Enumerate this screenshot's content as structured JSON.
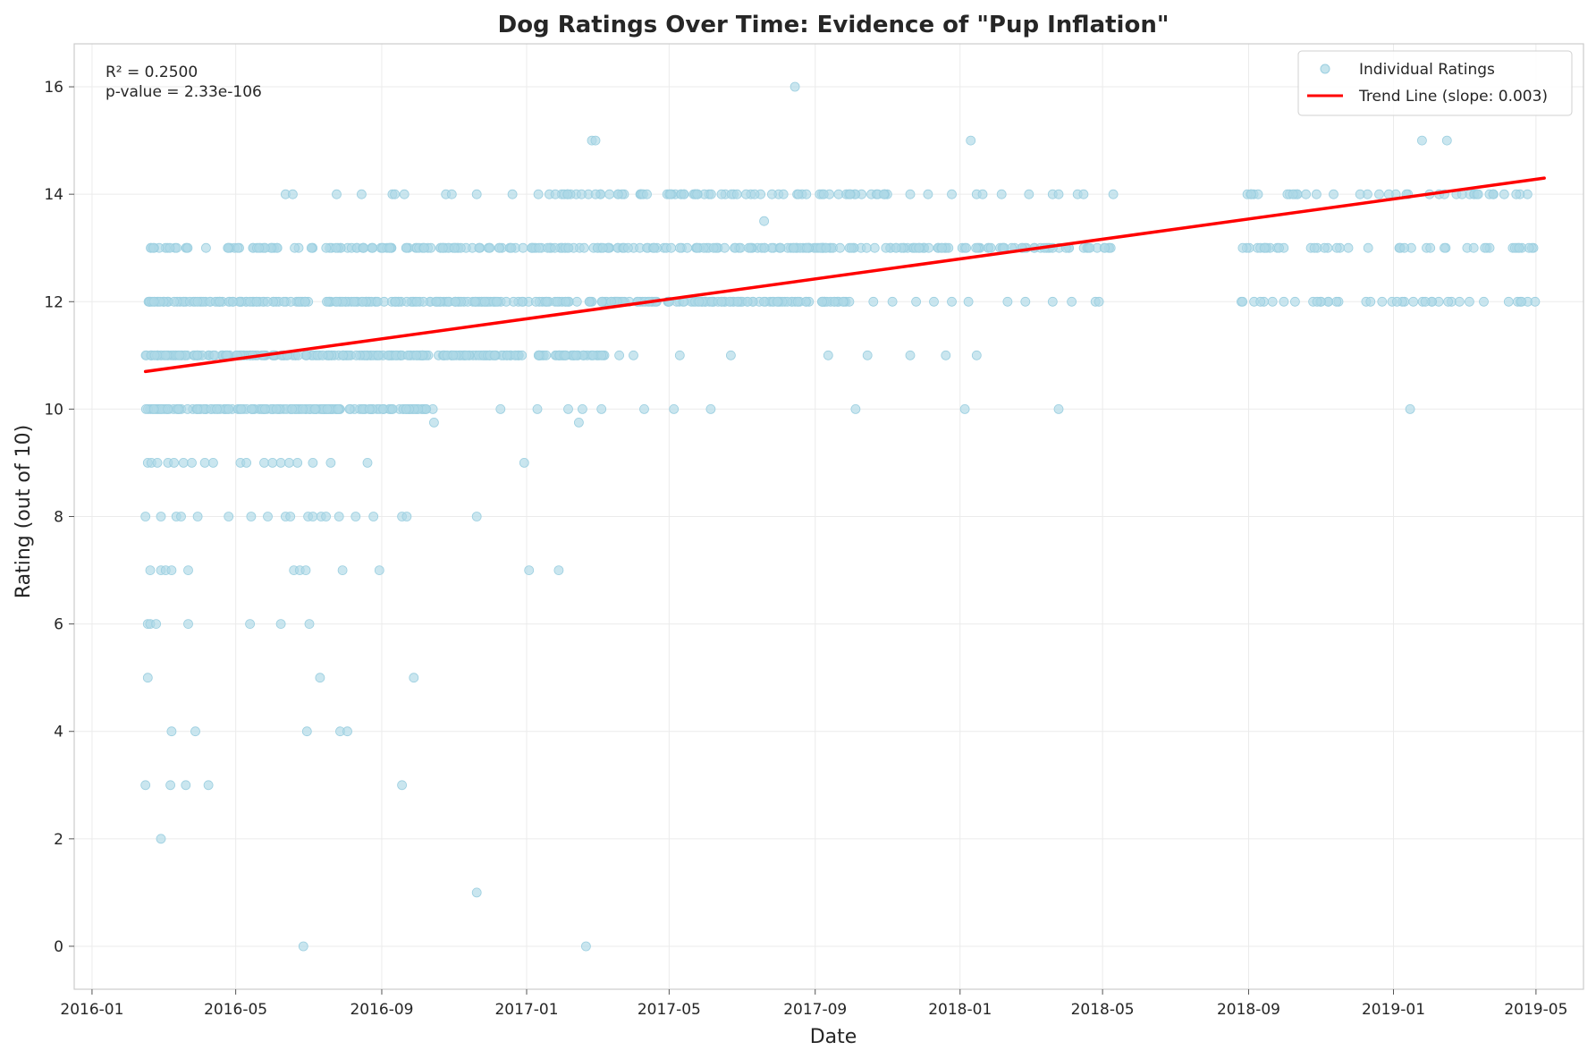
{
  "chart_data": {
    "type": "scatter",
    "title": "Dog Ratings Over Time: Evidence of \"Pup Inflation\"",
    "xlabel": "Date",
    "ylabel": "Rating (out of 10)",
    "xlim": [
      "2015-12-17",
      "2019-06-10"
    ],
    "ylim": [
      -0.8,
      16.8
    ],
    "x_ticks": [
      "2016-01",
      "2016-05",
      "2016-09",
      "2017-01",
      "2017-05",
      "2017-09",
      "2018-01",
      "2018-05",
      "2018-09",
      "2019-01",
      "2019-05"
    ],
    "y_ticks": [
      0,
      2,
      4,
      6,
      8,
      10,
      12,
      14,
      16
    ],
    "grid": true,
    "legend_position": "top-right",
    "stats": {
      "r2_text": "R² = 0.2500",
      "p_text": "p-value = 2.33e-106"
    },
    "series": [
      {
        "name": "Individual Ratings",
        "kind": "scatter",
        "color": "#add8e6",
        "bands": [
          {
            "rating": 13,
            "from": "2016-02-15",
            "to": "2018-05-10",
            "count": 300
          },
          {
            "rating": 12,
            "from": "2016-02-15",
            "to": "2017-10-01",
            "count": 300
          },
          {
            "rating": 11,
            "from": "2016-02-15",
            "to": "2017-03-15",
            "count": 260
          },
          {
            "rating": 10,
            "from": "2016-02-15",
            "to": "2016-10-15",
            "count": 180
          },
          {
            "rating": 14,
            "from": "2017-01-10",
            "to": "2017-11-10",
            "count": 80
          },
          {
            "rating": 13,
            "from": "2018-08-25",
            "to": "2019-05-08",
            "count": 45
          },
          {
            "rating": 12,
            "from": "2018-08-25",
            "to": "2019-05-08",
            "count": 40
          },
          {
            "rating": 14,
            "from": "2018-08-25",
            "to": "2019-05-08",
            "count": 40
          }
        ],
        "points": [
          [
            "2016-02-17",
            9
          ],
          [
            "2016-02-20",
            9
          ],
          [
            "2016-02-25",
            9
          ],
          [
            "2016-03-05",
            9
          ],
          [
            "2016-03-10",
            9
          ],
          [
            "2016-03-18",
            9
          ],
          [
            "2016-03-25",
            9
          ],
          [
            "2016-04-05",
            9
          ],
          [
            "2016-04-12",
            9
          ],
          [
            "2016-05-05",
            9
          ],
          [
            "2016-05-10",
            9
          ],
          [
            "2016-05-25",
            9
          ],
          [
            "2016-06-01",
            9
          ],
          [
            "2016-06-08",
            9
          ],
          [
            "2016-06-15",
            9
          ],
          [
            "2016-06-22",
            9
          ],
          [
            "2016-07-05",
            9
          ],
          [
            "2016-07-20",
            9
          ],
          [
            "2016-08-20",
            9
          ],
          [
            "2016-12-30",
            9
          ],
          [
            "2016-02-15",
            8
          ],
          [
            "2016-02-28",
            8
          ],
          [
            "2016-03-12",
            8
          ],
          [
            "2016-03-16",
            8
          ],
          [
            "2016-03-30",
            8
          ],
          [
            "2016-04-25",
            8
          ],
          [
            "2016-05-14",
            8
          ],
          [
            "2016-05-28",
            8
          ],
          [
            "2016-06-12",
            8
          ],
          [
            "2016-06-16",
            8
          ],
          [
            "2016-07-01",
            8
          ],
          [
            "2016-07-05",
            8
          ],
          [
            "2016-07-12",
            8
          ],
          [
            "2016-07-16",
            8
          ],
          [
            "2016-07-27",
            8
          ],
          [
            "2016-08-10",
            8
          ],
          [
            "2016-08-25",
            8
          ],
          [
            "2016-09-18",
            8
          ],
          [
            "2016-09-22",
            8
          ],
          [
            "2016-11-20",
            8
          ],
          [
            "2016-02-19",
            7
          ],
          [
            "2016-02-28",
            7
          ],
          [
            "2016-03-03",
            7
          ],
          [
            "2016-03-08",
            7
          ],
          [
            "2016-03-22",
            7
          ],
          [
            "2016-06-19",
            7
          ],
          [
            "2016-06-24",
            7
          ],
          [
            "2016-06-29",
            7
          ],
          [
            "2016-07-30",
            7
          ],
          [
            "2016-08-30",
            7
          ],
          [
            "2017-01-03",
            7
          ],
          [
            "2017-01-28",
            7
          ],
          [
            "2016-02-17",
            6
          ],
          [
            "2016-02-19",
            6
          ],
          [
            "2016-02-24",
            6
          ],
          [
            "2016-03-22",
            6
          ],
          [
            "2016-05-13",
            6
          ],
          [
            "2016-06-08",
            6
          ],
          [
            "2016-07-02",
            6
          ],
          [
            "2016-02-17",
            5
          ],
          [
            "2016-07-11",
            5
          ],
          [
            "2016-09-28",
            5
          ],
          [
            "2016-03-08",
            4
          ],
          [
            "2016-03-28",
            4
          ],
          [
            "2016-06-30",
            4
          ],
          [
            "2016-07-28",
            4
          ],
          [
            "2016-08-03",
            4
          ],
          [
            "2016-02-15",
            3
          ],
          [
            "2016-03-07",
            3
          ],
          [
            "2016-03-20",
            3
          ],
          [
            "2016-04-08",
            3
          ],
          [
            "2016-09-18",
            3
          ],
          [
            "2016-02-28",
            2
          ],
          [
            "2016-11-20",
            1
          ],
          [
            "2016-06-27",
            0
          ],
          [
            "2017-02-20",
            0
          ],
          [
            "2016-10-15",
            9.75
          ],
          [
            "2017-02-14",
            9.75
          ],
          [
            "2017-07-20",
            13.5
          ],
          [
            "2016-12-10",
            10
          ],
          [
            "2017-01-10",
            10
          ],
          [
            "2017-02-05",
            10
          ],
          [
            "2017-02-17",
            10
          ],
          [
            "2017-03-05",
            10
          ],
          [
            "2017-04-10",
            10
          ],
          [
            "2017-05-05",
            10
          ],
          [
            "2017-06-05",
            10
          ],
          [
            "2017-10-05",
            10
          ],
          [
            "2018-01-05",
            10
          ],
          [
            "2018-03-25",
            10
          ],
          [
            "2019-01-15",
            10
          ],
          [
            "2017-03-05",
            11
          ],
          [
            "2017-03-20",
            11
          ],
          [
            "2017-04-01",
            11
          ],
          [
            "2017-05-10",
            11
          ],
          [
            "2017-06-22",
            11
          ],
          [
            "2017-09-12",
            11
          ],
          [
            "2017-10-15",
            11
          ],
          [
            "2017-11-20",
            11
          ],
          [
            "2017-12-20",
            11
          ],
          [
            "2018-01-15",
            11
          ],
          [
            "2017-10-20",
            12
          ],
          [
            "2017-11-05",
            12
          ],
          [
            "2017-11-25",
            12
          ],
          [
            "2017-12-10",
            12
          ],
          [
            "2017-12-25",
            12
          ],
          [
            "2018-01-08",
            12
          ],
          [
            "2018-02-10",
            12
          ],
          [
            "2018-02-25",
            12
          ],
          [
            "2018-03-20",
            12
          ],
          [
            "2018-04-05",
            12
          ],
          [
            "2018-04-25",
            12
          ],
          [
            "2018-04-28",
            12
          ],
          [
            "2016-06-12",
            14
          ],
          [
            "2016-06-18",
            14
          ],
          [
            "2016-07-25",
            14
          ],
          [
            "2016-08-15",
            14
          ],
          [
            "2016-09-10",
            14
          ],
          [
            "2016-09-12",
            14
          ],
          [
            "2016-09-20",
            14
          ],
          [
            "2016-10-25",
            14
          ],
          [
            "2016-10-30",
            14
          ],
          [
            "2016-11-20",
            14
          ],
          [
            "2016-12-20",
            14
          ],
          [
            "2017-11-20",
            14
          ],
          [
            "2017-12-05",
            14
          ],
          [
            "2017-12-25",
            14
          ],
          [
            "2018-01-15",
            14
          ],
          [
            "2018-01-20",
            14
          ],
          [
            "2018-02-05",
            14
          ],
          [
            "2018-02-28",
            14
          ],
          [
            "2018-03-20",
            14
          ],
          [
            "2018-03-25",
            14
          ],
          [
            "2018-04-10",
            14
          ],
          [
            "2018-04-15",
            14
          ],
          [
            "2018-05-10",
            14
          ],
          [
            "2017-02-25",
            15
          ],
          [
            "2017-02-28",
            15
          ],
          [
            "2018-01-10",
            15
          ],
          [
            "2019-01-25",
            15
          ],
          [
            "2019-02-15",
            15
          ],
          [
            "2017-08-15",
            16
          ]
        ]
      },
      {
        "name": "Trend Line (slope: 0.003)",
        "kind": "line",
        "color": "#ff0000",
        "x": [
          "2016-02-15",
          "2019-05-08"
        ],
        "y": [
          10.7,
          14.3
        ]
      }
    ]
  }
}
